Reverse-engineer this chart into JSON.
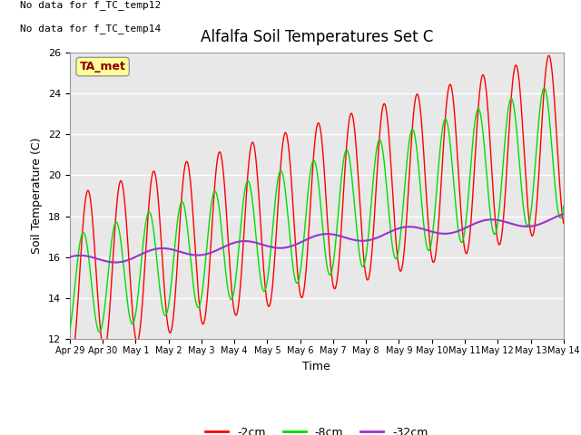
{
  "title": "Alfalfa Soil Temperatures Set C",
  "xlabel": "Time",
  "ylabel": "Soil Temperature (C)",
  "text_top_left_line1": "No data for f_TC_temp12",
  "text_top_left_line2": "No data for f_TC_temp14",
  "legend_box_label": "TA_met",
  "ylim": [
    12,
    26
  ],
  "xlim_days": [
    0,
    15
  ],
  "xtick_labels": [
    "Apr 29",
    "Apr 30",
    "May 1",
    "May 2",
    "May 3",
    "May 4",
    "May 5",
    "May 6",
    "May 7",
    "May 8",
    "May 9",
    "May 10",
    "May 11",
    "May 12",
    "May 13",
    "May 14"
  ],
  "figure_bg": "#ffffff",
  "plot_bg": "#e8e8e8",
  "grid_color": "#ffffff",
  "line_2cm_color": "#ff0000",
  "line_8cm_color": "#00dd00",
  "line_32cm_color": "#9933cc",
  "legend_labels": [
    "-2cm",
    "-8cm",
    "-32cm"
  ],
  "legend_colors": [
    "#ff0000",
    "#00dd00",
    "#9933cc"
  ],
  "title_fontsize": 12,
  "axis_label_fontsize": 9,
  "tick_fontsize": 8,
  "legend_fontsize": 9
}
